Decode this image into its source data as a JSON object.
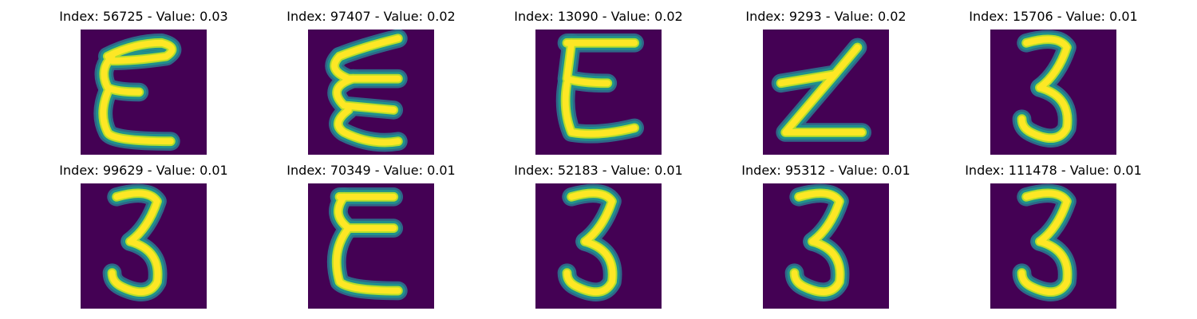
{
  "colors": {
    "background": "#440154",
    "stroke_mid": "#21918c",
    "stroke_edge": "#2c728e",
    "stroke_core": "#fde725",
    "stroke_light": "#b5de2b"
  },
  "panels": [
    {
      "title": "Index: 56725 - Value: 0.03",
      "index": 56725,
      "value": 0.03,
      "glyph": "epsilon"
    },
    {
      "title": "Index: 97407 - Value: 0.02",
      "index": 97407,
      "value": 0.02,
      "glyph": "zigzag-e"
    },
    {
      "title": "Index: 13090 - Value: 0.02",
      "index": 13090,
      "value": 0.02,
      "glyph": "block-e"
    },
    {
      "title": "Index: 9293 - Value: 0.02",
      "index": 9293,
      "value": 0.02,
      "glyph": "z"
    },
    {
      "title": "Index: 15706 - Value: 0.01",
      "index": 15706,
      "value": 0.01,
      "glyph": "three"
    },
    {
      "title": "Index: 99629 - Value: 0.01",
      "index": 99629,
      "value": 0.01,
      "glyph": "three"
    },
    {
      "title": "Index: 70349 - Value: 0.01",
      "index": 70349,
      "value": 0.01,
      "glyph": "epsilon-bold"
    },
    {
      "title": "Index: 52183 - Value: 0.01",
      "index": 52183,
      "value": 0.01,
      "glyph": "three"
    },
    {
      "title": "Index: 95312 - Value: 0.01",
      "index": 95312,
      "value": 0.01,
      "glyph": "three"
    },
    {
      "title": "Index: 111478 - Value: 0.01",
      "index": 111478,
      "value": 0.01,
      "glyph": "three"
    }
  ]
}
